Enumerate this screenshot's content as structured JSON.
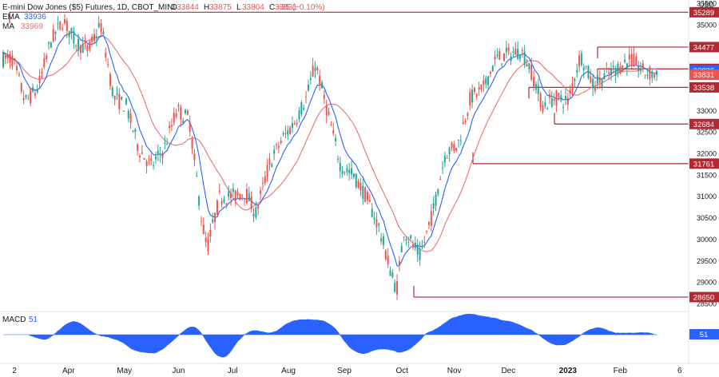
{
  "header": {
    "title": "E-mini Dow Jones ($5) Futures, 1D, CBOT_MINI",
    "ohlc": [
      {
        "k": "O",
        "v": "33844"
      },
      {
        "k": "H",
        "v": "33875"
      },
      {
        "k": "L",
        "v": "33804"
      },
      {
        "k": "C",
        "v": "33831"
      }
    ],
    "change": "−35 (−0.10%)",
    "ema_label": "EMA",
    "ema_value": "33936",
    "ma_label": "MA",
    "ma_value": "33969"
  },
  "macd": {
    "label": "MACD",
    "value": "51"
  },
  "axis": {
    "currency": "USD",
    "price_ticks": [
      "35500",
      "35000",
      "34500",
      "34000",
      "33500",
      "33000",
      "32500",
      "32000",
      "31500",
      "31000",
      "30500",
      "30000",
      "29500",
      "29000",
      "28500"
    ],
    "time_ticks": [
      "2",
      "Apr",
      "May",
      "Jun",
      "Jul",
      "Aug",
      "Sep",
      "Oct",
      "Nov",
      "Dec",
      "2023",
      "Feb",
      "6"
    ]
  },
  "colors": {
    "up": "#26a69a",
    "down": "#ef5350",
    "level": "#b22833",
    "ema": "#2962ff",
    "ma": "#e57373",
    "macd": "#2962ff"
  },
  "chart_data": {
    "type": "candlestick",
    "title": "E-mini Dow Jones ($5) Futures, 1D, CBOT_MINI",
    "ylim": [
      28500,
      35500
    ],
    "horizontal_levels": [
      35289,
      34477,
      33969,
      33936,
      33831,
      33538,
      32684,
      31761,
      28650
    ],
    "price_path": [
      {
        "date": "2022-03-01",
        "close": 34200
      },
      {
        "date": "2022-03-08",
        "close": 33200
      },
      {
        "date": "2022-03-15",
        "close": 33500
      },
      {
        "date": "2022-03-22",
        "close": 34600
      },
      {
        "date": "2022-03-29",
        "close": 35100
      },
      {
        "date": "2022-04-05",
        "close": 34600
      },
      {
        "date": "2022-04-12",
        "close": 34400
      },
      {
        "date": "2022-04-19",
        "close": 35000
      },
      {
        "date": "2022-04-26",
        "close": 33300
      },
      {
        "date": "2022-05-03",
        "close": 33100
      },
      {
        "date": "2022-05-10",
        "close": 32100
      },
      {
        "date": "2022-05-17",
        "close": 31700
      },
      {
        "date": "2022-05-24",
        "close": 32100
      },
      {
        "date": "2022-05-31",
        "close": 33000
      },
      {
        "date": "2022-06-07",
        "close": 32800
      },
      {
        "date": "2022-06-14",
        "close": 30400
      },
      {
        "date": "2022-06-17",
        "close": 29800
      },
      {
        "date": "2022-06-24",
        "close": 31000
      },
      {
        "date": "2022-07-01",
        "close": 31000
      },
      {
        "date": "2022-07-08",
        "close": 31100
      },
      {
        "date": "2022-07-14",
        "close": 30600
      },
      {
        "date": "2022-07-21",
        "close": 31700
      },
      {
        "date": "2022-07-28",
        "close": 32300
      },
      {
        "date": "2022-08-04",
        "close": 32700
      },
      {
        "date": "2022-08-11",
        "close": 33300
      },
      {
        "date": "2022-08-16",
        "close": 34100
      },
      {
        "date": "2022-08-23",
        "close": 32900
      },
      {
        "date": "2022-08-30",
        "close": 31700
      },
      {
        "date": "2022-09-06",
        "close": 31500
      },
      {
        "date": "2022-09-13",
        "close": 31000
      },
      {
        "date": "2022-09-20",
        "close": 30300
      },
      {
        "date": "2022-09-27",
        "close": 29200
      },
      {
        "date": "2022-09-30",
        "close": 28800
      },
      {
        "date": "2022-10-04",
        "close": 30200
      },
      {
        "date": "2022-10-13",
        "close": 29600
      },
      {
        "date": "2022-10-20",
        "close": 30600
      },
      {
        "date": "2022-10-27",
        "close": 32000
      },
      {
        "date": "2022-11-03",
        "close": 32200
      },
      {
        "date": "2022-11-10",
        "close": 33300
      },
      {
        "date": "2022-11-17",
        "close": 33500
      },
      {
        "date": "2022-11-24",
        "close": 34200
      },
      {
        "date": "2022-12-01",
        "close": 34300
      },
      {
        "date": "2022-12-08",
        "close": 34400
      },
      {
        "date": "2022-12-13",
        "close": 34000
      },
      {
        "date": "2022-12-20",
        "close": 33100
      },
      {
        "date": "2022-12-27",
        "close": 33300
      },
      {
        "date": "2023-01-03",
        "close": 33200
      },
      {
        "date": "2023-01-10",
        "close": 34300
      },
      {
        "date": "2023-01-17",
        "close": 33600
      },
      {
        "date": "2023-01-24",
        "close": 33800
      },
      {
        "date": "2023-01-31",
        "close": 34000
      },
      {
        "date": "2023-02-07",
        "close": 34200
      },
      {
        "date": "2023-02-14",
        "close": 33900
      },
      {
        "date": "2023-02-21",
        "close": 33831
      }
    ]
  }
}
